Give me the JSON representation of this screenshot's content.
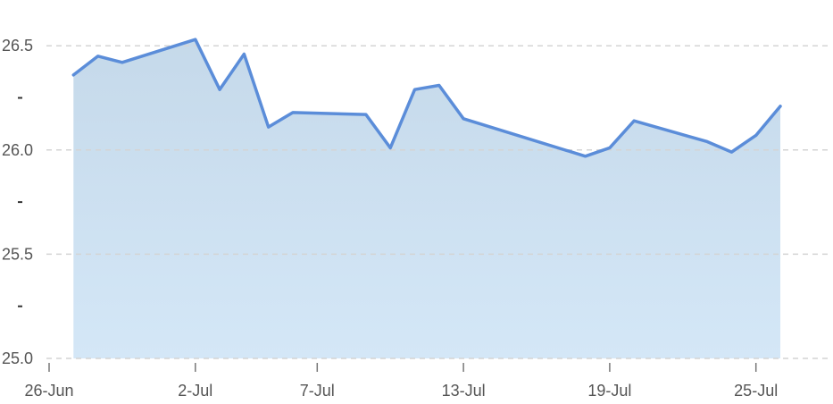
{
  "chart_data": {
    "type": "area",
    "title": "",
    "xlabel": "",
    "ylabel": "",
    "ylim": [
      25.0,
      26.6
    ],
    "grid": true,
    "legend": "none",
    "y_ticks": [
      {
        "value": 25.0,
        "label": "25.0"
      },
      {
        "value": 25.5,
        "label": "25.5"
      },
      {
        "value": 26.0,
        "label": "26.0"
      },
      {
        "value": 26.5,
        "label": "26.5"
      }
    ],
    "y_minor_ticks": [
      25.25,
      25.75,
      26.25
    ],
    "x_ticks": [
      {
        "day": 0,
        "label": "26-Jun"
      },
      {
        "day": 6,
        "label": "2-Jul"
      },
      {
        "day": 11,
        "label": "7-Jul"
      },
      {
        "day": 17,
        "label": "13-Jul"
      },
      {
        "day": 23,
        "label": "19-Jul"
      },
      {
        "day": 29,
        "label": "25-Jul"
      }
    ],
    "x_domain": [
      0,
      30
    ],
    "series": [
      {
        "color": "#5b8dd9",
        "fill_top": "#c5d9ea",
        "fill_bottom": "#d4e7f7",
        "points": [
          {
            "x": 1,
            "y": 26.36
          },
          {
            "x": 2,
            "y": 26.45
          },
          {
            "x": 3,
            "y": 26.42
          },
          {
            "x": 6,
            "y": 26.53
          },
          {
            "x": 7,
            "y": 26.29
          },
          {
            "x": 8,
            "y": 26.46
          },
          {
            "x": 9,
            "y": 26.11
          },
          {
            "x": 10,
            "y": 26.18
          },
          {
            "x": 13,
            "y": 26.17
          },
          {
            "x": 14,
            "y": 26.01
          },
          {
            "x": 15,
            "y": 26.29
          },
          {
            "x": 16,
            "y": 26.31
          },
          {
            "x": 17,
            "y": 26.15
          },
          {
            "x": 22,
            "y": 25.97
          },
          {
            "x": 23,
            "y": 26.01
          },
          {
            "x": 24,
            "y": 26.14
          },
          {
            "x": 27,
            "y": 26.04
          },
          {
            "x": 28,
            "y": 25.99
          },
          {
            "x": 29,
            "y": 26.07
          },
          {
            "x": 30,
            "y": 26.21
          }
        ]
      }
    ]
  }
}
